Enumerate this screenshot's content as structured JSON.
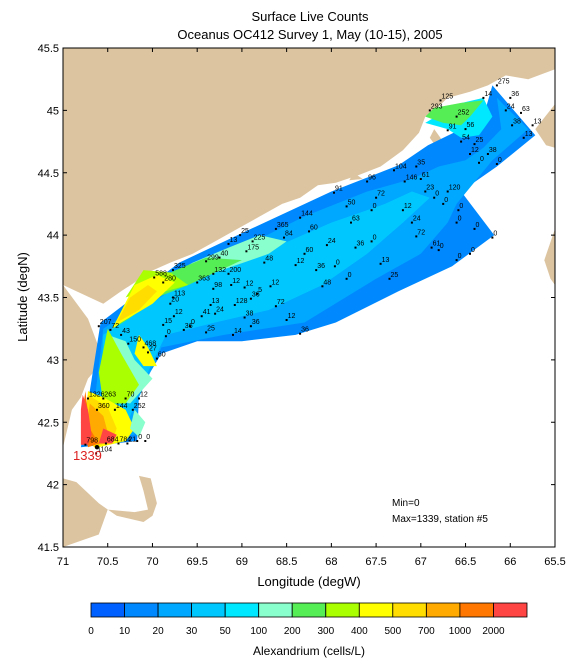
{
  "title": {
    "line1": "Surface Live Counts",
    "line2": "Oceanus OC412 Survey 1, May (10-15), 2005"
  },
  "axes": {
    "xlabel": "Longitude (degW)",
    "ylabel": "Latitude (degN)",
    "xticks": [
      "71",
      "70.5",
      "70",
      "69.5",
      "69",
      "68.5",
      "68",
      "67.5",
      "67",
      "66.5",
      "66",
      "65.5"
    ],
    "yticks": [
      "45.5",
      "45",
      "44.5",
      "44",
      "43.5",
      "43",
      "42.5",
      "42",
      "41.5"
    ],
    "xlim": [
      71,
      65.5
    ],
    "ylim": [
      41.5,
      45.5
    ]
  },
  "stats": {
    "min": "Min=0",
    "max": "Max=1339, station #5"
  },
  "max_marker": {
    "label": "1339",
    "lon": 70.62,
    "lat": 42.3,
    "color": "#dd2222"
  },
  "colorbar": {
    "label": "Alexandrium (cells/L)",
    "ticks": [
      "0",
      "10",
      "20",
      "30",
      "50",
      "100",
      "200",
      "300",
      "400",
      "500",
      "700",
      "1000",
      "2000"
    ],
    "colors": [
      "#0060ff",
      "#0088ff",
      "#00a8ff",
      "#00c8ff",
      "#00e8ff",
      "#88ffcc",
      "#55ee55",
      "#aaff00",
      "#ffff00",
      "#ffdd00",
      "#ffaa00",
      "#ff7700",
      "#ff4444"
    ]
  },
  "colors": {
    "land": "#dcc4a0",
    "water": "#ffffff",
    "station": "#000000"
  },
  "stations": [
    {
      "lon": 70.75,
      "lat": 42.32,
      "v": "798"
    },
    {
      "lon": 70.63,
      "lat": 42.25,
      "v": "1104"
    },
    {
      "lon": 70.52,
      "lat": 42.33,
      "v": "684"
    },
    {
      "lon": 70.38,
      "lat": 42.33,
      "v": "784"
    },
    {
      "lon": 70.28,
      "lat": 42.33,
      "v": "21"
    },
    {
      "lon": 70.17,
      "lat": 42.35,
      "v": "0"
    },
    {
      "lon": 70.08,
      "lat": 42.35,
      "v": "0"
    },
    {
      "lon": 70.72,
      "lat": 42.69,
      "v": "1326"
    },
    {
      "lon": 70.55,
      "lat": 42.69,
      "v": "263"
    },
    {
      "lon": 70.3,
      "lat": 42.69,
      "v": "70"
    },
    {
      "lon": 70.15,
      "lat": 42.69,
      "v": "12"
    },
    {
      "lon": 70.62,
      "lat": 42.6,
      "v": "360"
    },
    {
      "lon": 70.42,
      "lat": 42.6,
      "v": "144"
    },
    {
      "lon": 70.22,
      "lat": 42.6,
      "v": "252"
    },
    {
      "lon": 70.6,
      "lat": 43.27,
      "v": "207"
    },
    {
      "lon": 70.47,
      "lat": 43.24,
      "v": "72"
    },
    {
      "lon": 70.35,
      "lat": 43.2,
      "v": "43"
    },
    {
      "lon": 70.27,
      "lat": 43.13,
      "v": "150"
    },
    {
      "lon": 70.1,
      "lat": 43.1,
      "v": "468"
    },
    {
      "lon": 70.05,
      "lat": 43.06,
      "v": "27"
    },
    {
      "lon": 69.95,
      "lat": 43.01,
      "v": "60"
    },
    {
      "lon": 69.98,
      "lat": 43.66,
      "v": "588"
    },
    {
      "lon": 69.77,
      "lat": 43.72,
      "v": "325"
    },
    {
      "lon": 69.88,
      "lat": 43.62,
      "v": "280"
    },
    {
      "lon": 69.77,
      "lat": 43.5,
      "v": "113"
    },
    {
      "lon": 69.88,
      "lat": 43.28,
      "v": "15"
    },
    {
      "lon": 69.85,
      "lat": 43.19,
      "v": "0"
    },
    {
      "lon": 69.8,
      "lat": 43.45,
      "v": "20"
    },
    {
      "lon": 69.76,
      "lat": 43.35,
      "v": "12"
    },
    {
      "lon": 69.65,
      "lat": 43.24,
      "v": "36"
    },
    {
      "lon": 69.5,
      "lat": 43.62,
      "v": "363"
    },
    {
      "lon": 69.4,
      "lat": 43.79,
      "v": "299"
    },
    {
      "lon": 69.25,
      "lat": 43.82,
      "v": "40"
    },
    {
      "lon": 69.32,
      "lat": 43.69,
      "v": "132"
    },
    {
      "lon": 69.15,
      "lat": 43.69,
      "v": "200"
    },
    {
      "lon": 69.32,
      "lat": 43.57,
      "v": "98"
    },
    {
      "lon": 69.12,
      "lat": 43.6,
      "v": "12"
    },
    {
      "lon": 69.35,
      "lat": 43.44,
      "v": "13"
    },
    {
      "lon": 69.3,
      "lat": 43.37,
      "v": "24"
    },
    {
      "lon": 69.45,
      "lat": 43.35,
      "v": "41"
    },
    {
      "lon": 69.58,
      "lat": 43.27,
      "v": "0"
    },
    {
      "lon": 69.4,
      "lat": 43.22,
      "v": "25"
    },
    {
      "lon": 69.1,
      "lat": 43.2,
      "v": "14"
    },
    {
      "lon": 69.02,
      "lat": 44.0,
      "v": "25"
    },
    {
      "lon": 69.15,
      "lat": 43.93,
      "v": "13"
    },
    {
      "lon": 68.88,
      "lat": 43.95,
      "v": "225"
    },
    {
      "lon": 68.62,
      "lat": 44.05,
      "v": "365"
    },
    {
      "lon": 68.95,
      "lat": 43.87,
      "v": "175"
    },
    {
      "lon": 68.75,
      "lat": 43.78,
      "v": "48"
    },
    {
      "lon": 68.53,
      "lat": 43.98,
      "v": "84"
    },
    {
      "lon": 68.97,
      "lat": 43.58,
      "v": "12"
    },
    {
      "lon": 68.9,
      "lat": 43.49,
      "v": "36"
    },
    {
      "lon": 68.83,
      "lat": 43.53,
      "v": "5"
    },
    {
      "lon": 68.68,
      "lat": 43.59,
      "v": "12"
    },
    {
      "lon": 68.62,
      "lat": 43.43,
      "v": "72"
    },
    {
      "lon": 68.9,
      "lat": 43.27,
      "v": "36"
    },
    {
      "lon": 68.97,
      "lat": 43.34,
      "v": "38"
    },
    {
      "lon": 69.08,
      "lat": 43.44,
      "v": "128"
    },
    {
      "lon": 68.35,
      "lat": 44.14,
      "v": "144"
    },
    {
      "lon": 68.25,
      "lat": 44.03,
      "v": "60"
    },
    {
      "lon": 68.3,
      "lat": 43.85,
      "v": "60"
    },
    {
      "lon": 68.05,
      "lat": 43.92,
      "v": "24"
    },
    {
      "lon": 68.4,
      "lat": 43.76,
      "v": "12"
    },
    {
      "lon": 68.17,
      "lat": 43.72,
      "v": "36"
    },
    {
      "lon": 68.1,
      "lat": 43.59,
      "v": "48"
    },
    {
      "lon": 68.5,
      "lat": 43.32,
      "v": "12"
    },
    {
      "lon": 68.35,
      "lat": 43.21,
      "v": "36"
    },
    {
      "lon": 67.97,
      "lat": 44.34,
      "v": "91"
    },
    {
      "lon": 67.83,
      "lat": 44.23,
      "v": "50"
    },
    {
      "lon": 67.78,
      "lat": 44.1,
      "v": "63"
    },
    {
      "lon": 67.73,
      "lat": 43.9,
      "v": "36"
    },
    {
      "lon": 67.83,
      "lat": 43.65,
      "v": "0"
    },
    {
      "lon": 67.96,
      "lat": 43.75,
      "v": "0"
    },
    {
      "lon": 67.6,
      "lat": 44.43,
      "v": "96"
    },
    {
      "lon": 67.5,
      "lat": 44.3,
      "v": "72"
    },
    {
      "lon": 67.55,
      "lat": 44.2,
      "v": "0"
    },
    {
      "lon": 67.55,
      "lat": 43.95,
      "v": "0"
    },
    {
      "lon": 67.45,
      "lat": 43.77,
      "v": "13"
    },
    {
      "lon": 67.35,
      "lat": 43.65,
      "v": "25"
    },
    {
      "lon": 67.3,
      "lat": 44.52,
      "v": "104"
    },
    {
      "lon": 67.18,
      "lat": 44.43,
      "v": "146"
    },
    {
      "lon": 67.2,
      "lat": 44.2,
      "v": "12"
    },
    {
      "lon": 67.1,
      "lat": 44.1,
      "v": "24"
    },
    {
      "lon": 67.05,
      "lat": 43.99,
      "v": "72"
    },
    {
      "lon": 67.05,
      "lat": 44.55,
      "v": "35"
    },
    {
      "lon": 67.0,
      "lat": 44.45,
      "v": "61"
    },
    {
      "lon": 66.95,
      "lat": 44.35,
      "v": "23"
    },
    {
      "lon": 66.85,
      "lat": 44.3,
      "v": "0"
    },
    {
      "lon": 66.88,
      "lat": 43.9,
      "v": "61"
    },
    {
      "lon": 66.7,
      "lat": 44.35,
      "v": "120"
    },
    {
      "lon": 66.75,
      "lat": 44.25,
      "v": "0"
    },
    {
      "lon": 66.58,
      "lat": 44.2,
      "v": "0"
    },
    {
      "lon": 66.6,
      "lat": 44.1,
      "v": "0"
    },
    {
      "lon": 66.4,
      "lat": 44.05,
      "v": "0"
    },
    {
      "lon": 66.2,
      "lat": 43.98,
      "v": "0"
    },
    {
      "lon": 66.6,
      "lat": 43.8,
      "v": "0"
    },
    {
      "lon": 66.45,
      "lat": 43.85,
      "v": "0"
    },
    {
      "lon": 66.8,
      "lat": 43.88,
      "v": "0"
    },
    {
      "lon": 66.9,
      "lat": 45.0,
      "v": "293"
    },
    {
      "lon": 66.78,
      "lat": 45.08,
      "v": "125"
    },
    {
      "lon": 66.6,
      "lat": 44.95,
      "v": "252"
    },
    {
      "lon": 66.7,
      "lat": 44.84,
      "v": "91"
    },
    {
      "lon": 66.5,
      "lat": 44.85,
      "v": "56"
    },
    {
      "lon": 66.55,
      "lat": 44.75,
      "v": "54"
    },
    {
      "lon": 66.4,
      "lat": 44.73,
      "v": "25"
    },
    {
      "lon": 66.45,
      "lat": 44.65,
      "v": "12"
    },
    {
      "lon": 66.25,
      "lat": 44.65,
      "v": "38"
    },
    {
      "lon": 66.35,
      "lat": 44.58,
      "v": "0"
    },
    {
      "lon": 66.15,
      "lat": 44.57,
      "v": "0"
    },
    {
      "lon": 66.3,
      "lat": 45.1,
      "v": "14"
    },
    {
      "lon": 66.15,
      "lat": 45.2,
      "v": "275"
    },
    {
      "lon": 66.0,
      "lat": 45.1,
      "v": "36"
    },
    {
      "lon": 66.05,
      "lat": 45.0,
      "v": "24"
    },
    {
      "lon": 65.88,
      "lat": 44.98,
      "v": "63"
    },
    {
      "lon": 65.98,
      "lat": 44.88,
      "v": "38"
    },
    {
      "lon": 65.75,
      "lat": 44.88,
      "v": "13"
    },
    {
      "lon": 65.85,
      "lat": 44.78,
      "v": "13"
    }
  ]
}
